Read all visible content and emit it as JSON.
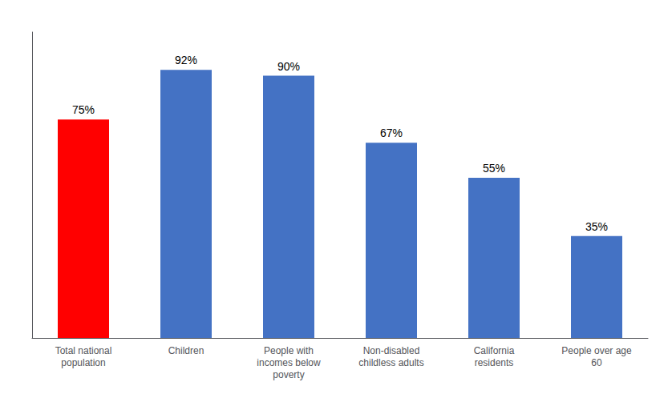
{
  "chart_data": {
    "type": "bar",
    "categories": [
      "Total national\npopulation",
      "Children",
      "People with\nincomes below\npoverty",
      "Non-disabled\nchildless adults",
      "California\nresidents",
      "People over age\n60"
    ],
    "values": [
      75,
      92,
      90,
      67,
      55,
      35
    ],
    "value_labels": [
      "75%",
      "92%",
      "90%",
      "67%",
      "55%",
      "35%"
    ],
    "data_labels": true,
    "colors": [
      "#FF0000",
      "#4472C4",
      "#4472C4",
      "#4472C4",
      "#4472C4",
      "#4472C4"
    ],
    "ylim": [
      0,
      105
    ],
    "grid": false,
    "tick_labels": "x"
  }
}
